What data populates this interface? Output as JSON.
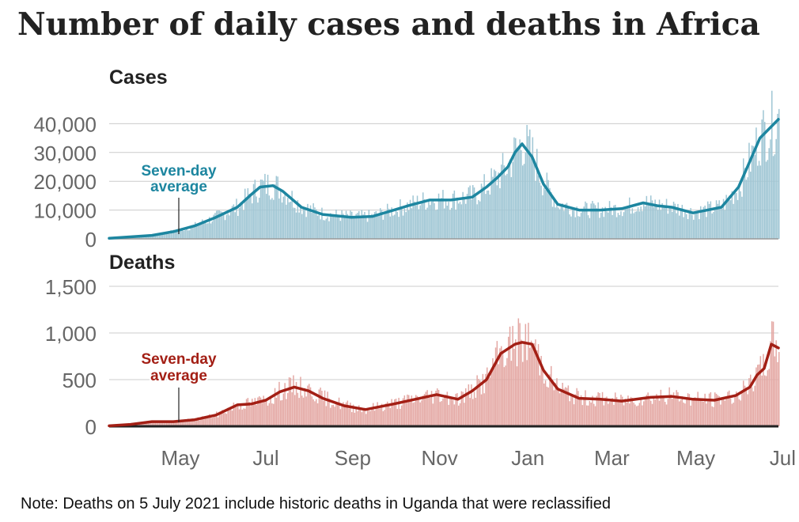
{
  "chart_data": [
    {
      "type": "bar+line",
      "title": "Number of daily cases and deaths in Africa",
      "panel_title": "Cases",
      "ylim": [
        0,
        48000
      ],
      "yticks": [
        0,
        10000,
        20000,
        30000,
        40000
      ],
      "ytick_labels": [
        "0",
        "10,000",
        "20,000",
        "30,000",
        "40,000"
      ],
      "xticks": [
        "May",
        "Jul",
        "Sep",
        "Nov",
        "Jan",
        "Mar",
        "May",
        "Jul"
      ],
      "annotation": "Seven-day average",
      "colors": {
        "bar": "#9fc6d4",
        "line": "#1d86a0"
      },
      "average_series": {
        "name": "Seven-day average",
        "day": [
          0,
          30,
          45,
          60,
          75,
          90,
          100,
          106,
          115,
          122,
          135,
          150,
          170,
          185,
          200,
          210,
          225,
          240,
          255,
          265,
          272,
          280,
          285,
          290,
          297,
          305,
          315,
          330,
          345,
          360,
          375,
          385,
          395,
          410,
          430,
          442,
          450,
          457,
          470
        ],
        "values": [
          200,
          1200,
          2500,
          4500,
          7500,
          11000,
          15500,
          18000,
          18500,
          16500,
          11000,
          8500,
          7500,
          7800,
          10000,
          11500,
          13500,
          13500,
          14500,
          18000,
          21000,
          25000,
          30000,
          33000,
          28500,
          19000,
          12000,
          10000,
          10000,
          10500,
          12500,
          11500,
          11000,
          9000,
          11000,
          18000,
          27000,
          35000,
          41500
        ]
      }
    },
    {
      "type": "bar+line",
      "panel_title": "Deaths",
      "ylim": [
        0,
        1650
      ],
      "yticks": [
        0,
        500,
        1000,
        1500
      ],
      "ytick_labels": [
        "0",
        "500",
        "1,000",
        "1,500"
      ],
      "xticks": [
        "May",
        "Jul",
        "Sep",
        "Nov",
        "Jan",
        "Mar",
        "May",
        "Jul"
      ],
      "annotation": "Seven-day average",
      "colors": {
        "bar": "#e4a8a4",
        "line": "#a31f15"
      },
      "average_series": {
        "name": "Seven-day average",
        "day": [
          0,
          15,
          30,
          45,
          60,
          75,
          90,
          100,
          110,
          120,
          130,
          140,
          150,
          165,
          180,
          200,
          215,
          230,
          245,
          255,
          265,
          275,
          285,
          290,
          297,
          305,
          315,
          330,
          345,
          360,
          380,
          395,
          410,
          425,
          440,
          450,
          455,
          460,
          465,
          470
        ],
        "values": [
          5,
          20,
          50,
          50,
          70,
          120,
          230,
          240,
          280,
          370,
          420,
          380,
          300,
          220,
          180,
          240,
          290,
          340,
          290,
          380,
          500,
          780,
          880,
          900,
          880,
          600,
          400,
          300,
          290,
          270,
          310,
          320,
          290,
          280,
          330,
          420,
          550,
          620,
          880,
          840
        ]
      }
    }
  ],
  "footnote": "Note: Deaths on 5 July 2021 include historic deaths in Uganda that were reclassified"
}
